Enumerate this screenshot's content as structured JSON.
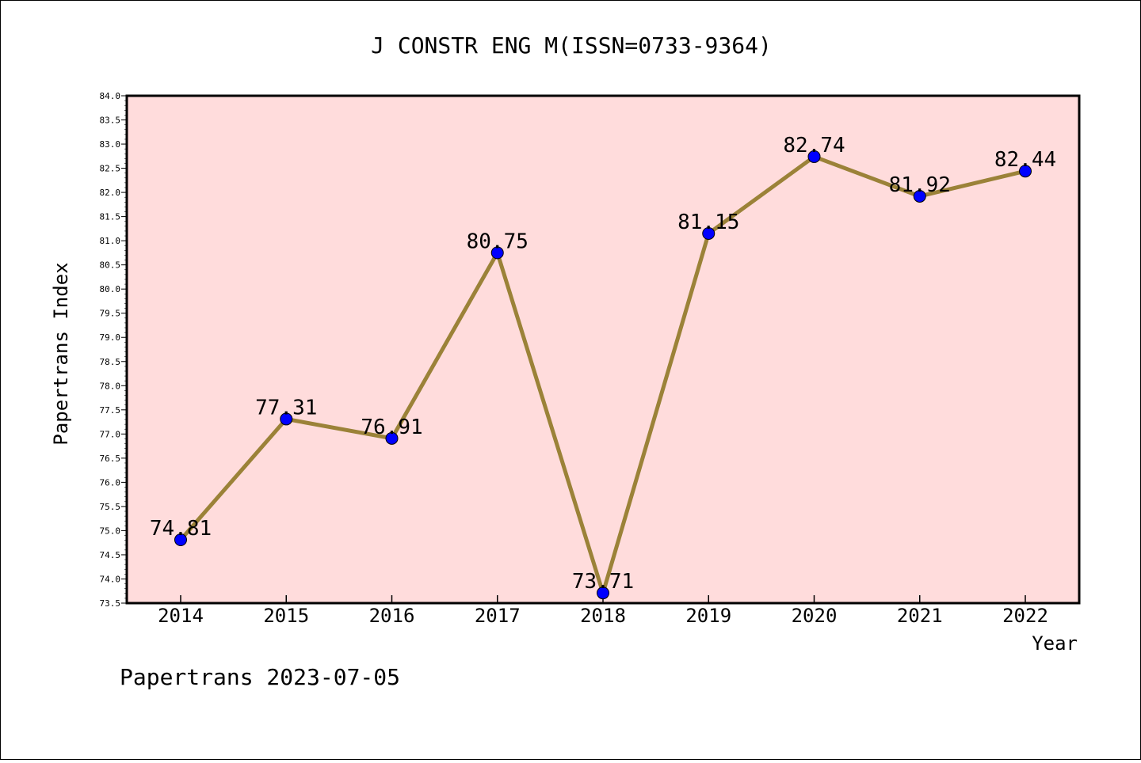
{
  "chart_data": {
    "type": "line",
    "title": "J CONSTR ENG M(ISSN=0733-9364)",
    "xlabel": "Year",
    "ylabel": "Papertrans Index",
    "categories": [
      "2014",
      "2015",
      "2016",
      "2017",
      "2018",
      "2019",
      "2020",
      "2021",
      "2022"
    ],
    "values": [
      74.81,
      77.31,
      76.91,
      80.75,
      73.71,
      81.15,
      82.74,
      81.92,
      82.44
    ],
    "data_labels": [
      "74.81",
      "77.31",
      "76.91",
      "80.75",
      "73.71",
      "81.15",
      "82.74",
      "81.92",
      "82.44"
    ],
    "ylim": [
      73.5,
      84.0
    ],
    "yticks": [
      "73.5",
      "74.0",
      "74.5",
      "75.0",
      "75.5",
      "76.0",
      "76.5",
      "77.0",
      "77.5",
      "78.0",
      "78.5",
      "79.0",
      "79.5",
      "80.0",
      "80.5",
      "81.0",
      "81.5",
      "82.0",
      "82.5",
      "83.0",
      "83.5",
      "84.0"
    ],
    "grid": false,
    "colors": {
      "plot_background": "#ffdcdc",
      "line": "#9b8238",
      "marker": "#0000ff"
    }
  },
  "footer": "Papertrans 2023-07-05"
}
